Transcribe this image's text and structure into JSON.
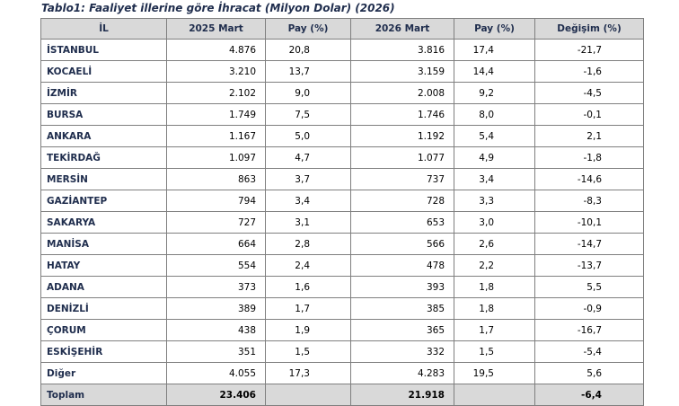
{
  "title": "Tablo1: Faaliyet illerine göre İhracat (Milyon Dolar) (2026)",
  "table": {
    "header": [
      "İL",
      "2025 Mart",
      "Pay  (%)",
      "2026 Mart",
      "Pay  (%)",
      "Değişim (%)"
    ],
    "rows": [
      [
        "İSTANBUL",
        "4.876",
        "20,8",
        "3.816",
        "17,4",
        "-21,7"
      ],
      [
        "KOCAELİ",
        "3.210",
        "13,7",
        "3.159",
        "14,4",
        "-1,6"
      ],
      [
        "İZMİR",
        "2.102",
        "9,0",
        "2.008",
        "9,2",
        "-4,5"
      ],
      [
        "BURSA",
        "1.749",
        "7,5",
        "1.746",
        "8,0",
        "-0,1"
      ],
      [
        "ANKARA",
        "1.167",
        "5,0",
        "1.192",
        "5,4",
        "2,1"
      ],
      [
        "TEKİRDAĞ",
        "1.097",
        "4,7",
        "1.077",
        "4,9",
        "-1,8"
      ],
      [
        "MERSİN",
        "863",
        "3,7",
        "737",
        "3,4",
        "-14,6"
      ],
      [
        "GAZİANTEP",
        "794",
        "3,4",
        "728",
        "3,3",
        "-8,3"
      ],
      [
        "SAKARYA",
        "727",
        "3,1",
        "653",
        "3,0",
        "-10,1"
      ],
      [
        "MANİSA",
        "664",
        "2,8",
        "566",
        "2,6",
        "-14,7"
      ],
      [
        "HATAY",
        "554",
        "2,4",
        "478",
        "2,2",
        "-13,7"
      ],
      [
        "ADANA",
        "373",
        "1,6",
        "393",
        "1,8",
        "5,5"
      ],
      [
        "DENİZLİ",
        "389",
        "1,7",
        "385",
        "1,8",
        "-0,9"
      ],
      [
        "ÇORUM",
        "438",
        "1,9",
        "365",
        "1,7",
        "-16,7"
      ],
      [
        "ESKİŞEHİR",
        "351",
        "1,5",
        "332",
        "1,5",
        "-5,4"
      ],
      [
        "Diğer",
        "4.055",
        "17,3",
        "4.283",
        "19,5",
        "5,6"
      ]
    ],
    "total": {
      "label": "Toplam",
      "mart_2025": "23.406",
      "mart_2026": "21.918",
      "change": "-6,4"
    }
  }
}
